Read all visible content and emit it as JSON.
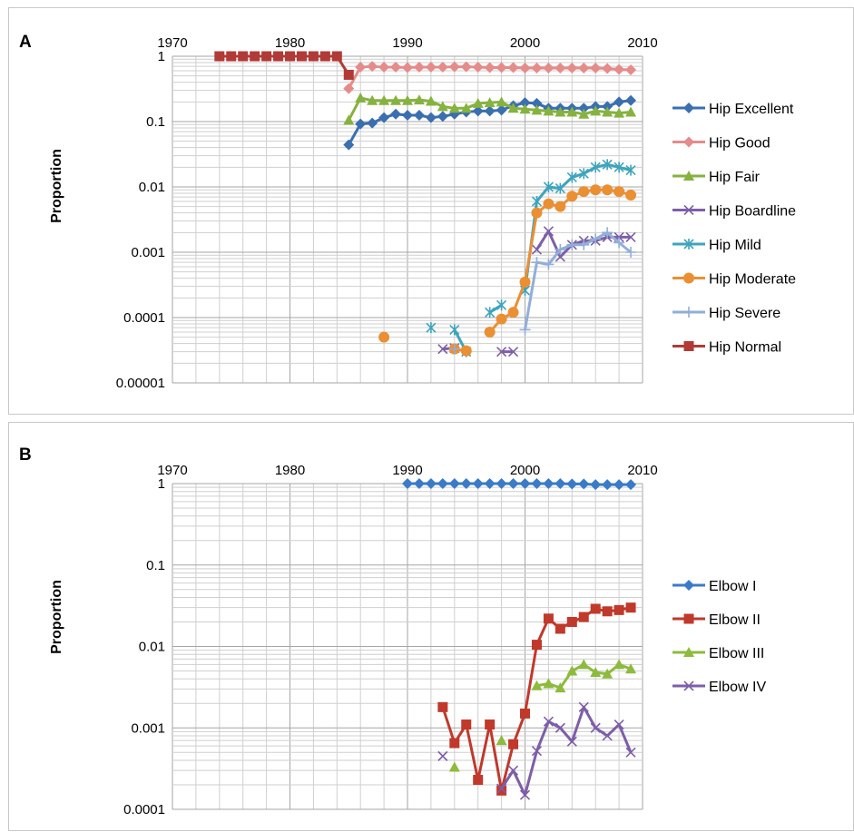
{
  "chart_data": [
    {
      "panel": "A",
      "type": "line",
      "ylabel": "Proportion",
      "yscale": "log",
      "ylim": [
        1e-05,
        1
      ],
      "xlim": [
        1970,
        2010
      ],
      "x_ticks": [
        1970,
        1980,
        1990,
        2000,
        2010
      ],
      "y_ticks": [
        "1",
        "0.1",
        "0.01",
        "0.001",
        "0.0001",
        "0.00001"
      ],
      "grid": true,
      "legend": "right",
      "series": [
        {
          "name": "Hip Excellent",
          "color": "#3a6fb0",
          "marker": "diamond",
          "points": [
            [
              1985,
              0.044
            ],
            [
              1986,
              0.092
            ],
            [
              1987,
              0.095
            ],
            [
              1988,
              0.115
            ],
            [
              1989,
              0.13
            ],
            [
              1990,
              0.125
            ],
            [
              1991,
              0.125
            ],
            [
              1992,
              0.115
            ],
            [
              1993,
              0.12
            ],
            [
              1994,
              0.13
            ],
            [
              1995,
              0.14
            ],
            [
              1996,
              0.145
            ],
            [
              1997,
              0.145
            ],
            [
              1998,
              0.15
            ],
            [
              1999,
              0.175
            ],
            [
              2000,
              0.195
            ],
            [
              2001,
              0.19
            ],
            [
              2002,
              0.16
            ],
            [
              2003,
              0.16
            ],
            [
              2004,
              0.16
            ],
            [
              2005,
              0.16
            ],
            [
              2006,
              0.17
            ],
            [
              2007,
              0.17
            ],
            [
              2008,
              0.2
            ],
            [
              2009,
              0.21
            ]
          ]
        },
        {
          "name": "Hip Good",
          "color": "#e58c8a",
          "marker": "diamond",
          "points": [
            [
              1985,
              0.32
            ],
            [
              1986,
              0.68
            ],
            [
              1987,
              0.7
            ],
            [
              1988,
              0.68
            ],
            [
              1989,
              0.68
            ],
            [
              1990,
              0.67
            ],
            [
              1991,
              0.68
            ],
            [
              1992,
              0.68
            ],
            [
              1993,
              0.68
            ],
            [
              1994,
              0.69
            ],
            [
              1995,
              0.69
            ],
            [
              1996,
              0.68
            ],
            [
              1997,
              0.67
            ],
            [
              1998,
              0.67
            ],
            [
              1999,
              0.67
            ],
            [
              2000,
              0.66
            ],
            [
              2001,
              0.66
            ],
            [
              2002,
              0.66
            ],
            [
              2003,
              0.66
            ],
            [
              2004,
              0.66
            ],
            [
              2005,
              0.66
            ],
            [
              2006,
              0.66
            ],
            [
              2007,
              0.65
            ],
            [
              2008,
              0.63
            ],
            [
              2009,
              0.62
            ]
          ]
        },
        {
          "name": "Hip Fair",
          "color": "#86b23f",
          "marker": "triangle",
          "points": [
            [
              1985,
              0.105
            ],
            [
              1986,
              0.23
            ],
            [
              1987,
              0.21
            ],
            [
              1988,
              0.21
            ],
            [
              1989,
              0.21
            ],
            [
              1990,
              0.21
            ],
            [
              1991,
              0.215
            ],
            [
              1992,
              0.205
            ],
            [
              1993,
              0.17
            ],
            [
              1994,
              0.16
            ],
            [
              1995,
              0.16
            ],
            [
              1996,
              0.19
            ],
            [
              1997,
              0.195
            ],
            [
              1998,
              0.2
            ],
            [
              1999,
              0.16
            ],
            [
              2000,
              0.155
            ],
            [
              2001,
              0.15
            ],
            [
              2002,
              0.145
            ],
            [
              2003,
              0.14
            ],
            [
              2004,
              0.14
            ],
            [
              2005,
              0.13
            ],
            [
              2006,
              0.145
            ],
            [
              2007,
              0.14
            ],
            [
              2008,
              0.135
            ],
            [
              2009,
              0.14
            ]
          ]
        },
        {
          "name": "Hip Boardline",
          "color": "#7d5ea8",
          "marker": "x",
          "points": [
            [
              1993,
              3.3e-05
            ],
            [
              1994,
              3.4e-05
            ],
            null,
            [
              1998,
              3e-05
            ],
            [
              1999,
              3e-05
            ],
            null,
            [
              2001,
              0.0011
            ],
            [
              2002,
              0.0021
            ],
            [
              2003,
              0.00085
            ],
            [
              2004,
              0.0013
            ],
            [
              2005,
              0.0015
            ],
            [
              2006,
              0.0015
            ],
            [
              2007,
              0.0017
            ],
            [
              2008,
              0.0017
            ],
            [
              2009,
              0.0017
            ]
          ]
        },
        {
          "name": "Hip Mild",
          "color": "#3ea4bd",
          "marker": "asterisk",
          "points": [
            [
              1992,
              7e-05
            ],
            null,
            [
              1994,
              6.5e-05
            ],
            [
              1995,
              3e-05
            ],
            null,
            [
              1997,
              0.00012
            ],
            [
              1998,
              0.000155
            ],
            null,
            [
              2000,
              0.00026
            ],
            [
              2001,
              0.006
            ],
            [
              2002,
              0.01
            ],
            [
              2003,
              0.0095
            ],
            [
              2004,
              0.014
            ],
            [
              2005,
              0.016
            ],
            [
              2006,
              0.02
            ],
            [
              2007,
              0.022
            ],
            [
              2008,
              0.02
            ],
            [
              2009,
              0.018
            ]
          ]
        },
        {
          "name": "Hip Moderate",
          "color": "#eb8f33",
          "marker": "circle",
          "points": [
            [
              1988,
              5e-05
            ],
            null,
            [
              1994,
              3.3e-05
            ],
            [
              1995,
              3.1e-05
            ],
            null,
            [
              1997,
              6e-05
            ],
            [
              1998,
              9.5e-05
            ],
            [
              1999,
              0.00012
            ],
            [
              2000,
              0.00035
            ],
            [
              2001,
              0.004
            ],
            [
              2002,
              0.0055
            ],
            [
              2003,
              0.005
            ],
            [
              2004,
              0.0072
            ],
            [
              2005,
              0.0085
            ],
            [
              2006,
              0.009
            ],
            [
              2007,
              0.009
            ],
            [
              2008,
              0.0085
            ],
            [
              2009,
              0.0075
            ]
          ]
        },
        {
          "name": "Hip Severe",
          "color": "#92aed8",
          "marker": "plus",
          "points": [
            [
              1994,
              3.3e-05
            ],
            null,
            [
              2000,
              6.5e-05
            ],
            [
              2001,
              0.0007
            ],
            [
              2002,
              0.00065
            ],
            [
              2003,
              0.0011
            ],
            [
              2004,
              0.0013
            ],
            [
              2005,
              0.0013
            ],
            [
              2006,
              0.0016
            ],
            [
              2007,
              0.002
            ],
            [
              2008,
              0.0014
            ],
            [
              2009,
              0.001
            ]
          ]
        },
        {
          "name": "Hip Normal",
          "color": "#b13a36",
          "marker": "square",
          "points": [
            [
              1974,
              1
            ],
            [
              1975,
              1
            ],
            [
              1976,
              1
            ],
            [
              1977,
              1
            ],
            [
              1978,
              1
            ],
            [
              1979,
              1
            ],
            [
              1980,
              1
            ],
            [
              1981,
              1
            ],
            [
              1982,
              1
            ],
            [
              1983,
              1
            ],
            [
              1984,
              1
            ],
            [
              1985,
              0.52
            ]
          ]
        }
      ]
    },
    {
      "panel": "B",
      "type": "line",
      "ylabel": "Proportion",
      "yscale": "log",
      "ylim": [
        0.0001,
        1
      ],
      "xlim": [
        1970,
        2010
      ],
      "x_ticks": [
        1970,
        1980,
        1990,
        2000,
        2010
      ],
      "y_ticks": [
        "1",
        "0.1",
        "0.01",
        "0.001",
        "0.0001"
      ],
      "grid": true,
      "legend": "right",
      "series": [
        {
          "name": "Elbow I",
          "color": "#3a7bc8",
          "marker": "diamond",
          "points": [
            [
              1990,
              1
            ],
            [
              1991,
              1
            ],
            [
              1992,
              1
            ],
            [
              1993,
              1
            ],
            [
              1994,
              1
            ],
            [
              1995,
              1
            ],
            [
              1996,
              1
            ],
            [
              1997,
              1
            ],
            [
              1998,
              1
            ],
            [
              1999,
              1
            ],
            [
              2000,
              1
            ],
            [
              2001,
              1
            ],
            [
              2002,
              1
            ],
            [
              2003,
              1
            ],
            [
              2004,
              0.99
            ],
            [
              2005,
              0.99
            ],
            [
              2006,
              0.97
            ],
            [
              2007,
              0.97
            ],
            [
              2008,
              0.97
            ],
            [
              2009,
              0.97
            ]
          ]
        },
        {
          "name": "Elbow II",
          "color": "#c0392b",
          "marker": "square",
          "points": [
            [
              1993,
              0.0018
            ],
            [
              1994,
              0.00065
            ],
            [
              1995,
              0.0011
            ],
            [
              1996,
              0.00023
            ],
            [
              1997,
              0.0011
            ],
            [
              1998,
              0.00017
            ],
            [
              1999,
              0.00063
            ],
            [
              2000,
              0.0015
            ],
            [
              2001,
              0.0105
            ],
            [
              2002,
              0.022
            ],
            [
              2003,
              0.0165
            ],
            [
              2004,
              0.02
            ],
            [
              2005,
              0.023
            ],
            [
              2006,
              0.029
            ],
            [
              2007,
              0.027
            ],
            [
              2008,
              0.028
            ],
            [
              2009,
              0.03
            ]
          ]
        },
        {
          "name": "Elbow III",
          "color": "#8dbb3c",
          "marker": "triangle",
          "points": [
            [
              1994,
              0.00033
            ],
            null,
            [
              1998,
              0.0007
            ],
            null,
            [
              2001,
              0.0033
            ],
            [
              2002,
              0.0035
            ],
            [
              2003,
              0.0031
            ],
            [
              2004,
              0.005
            ],
            [
              2005,
              0.006
            ],
            [
              2006,
              0.0048
            ],
            [
              2007,
              0.0046
            ],
            [
              2008,
              0.006
            ],
            [
              2009,
              0.0053
            ]
          ]
        },
        {
          "name": "Elbow IV",
          "color": "#7d5ea8",
          "marker": "x",
          "points": [
            [
              1993,
              0.00045
            ],
            null,
            [
              1998,
              0.00018
            ],
            [
              1999,
              0.0003
            ],
            [
              2000,
              0.00015
            ],
            [
              2001,
              0.00052
            ],
            [
              2002,
              0.0012
            ],
            [
              2003,
              0.001
            ],
            [
              2004,
              0.00068
            ],
            [
              2005,
              0.0018
            ],
            [
              2006,
              0.001
            ],
            [
              2007,
              0.0008
            ],
            [
              2008,
              0.0011
            ],
            [
              2009,
              0.0005
            ]
          ]
        }
      ]
    }
  ]
}
